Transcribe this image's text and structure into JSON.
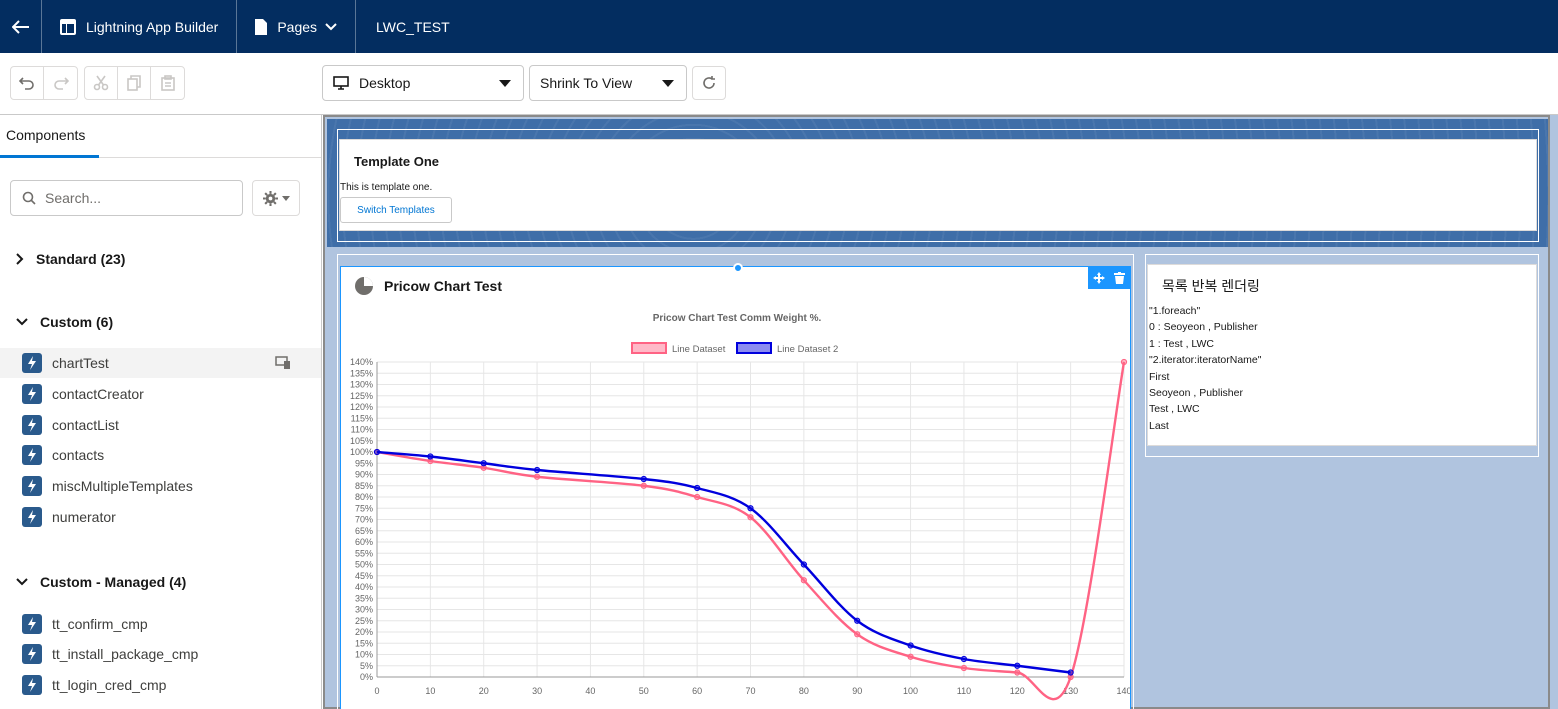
{
  "header": {
    "app_name": "Lightning App Builder",
    "pages_label": "Pages",
    "page_title": "LWC_TEST"
  },
  "toolbar": {
    "device_select": "Desktop",
    "view_select": "Shrink To View"
  },
  "left_panel": {
    "tab_label": "Components",
    "search_placeholder": "Search...",
    "sections": {
      "standard": "Standard (23)",
      "custom": "Custom (6)",
      "custom_managed": "Custom - Managed (4)"
    },
    "custom_items": [
      "chartTest",
      "contactCreator",
      "contactList",
      "contacts",
      "miscMultipleTemplates",
      "numerator"
    ],
    "managed_items": [
      "tt_confirm_cmp",
      "tt_install_package_cmp",
      "tt_login_cred_cmp"
    ]
  },
  "template_card": {
    "title": "Template One",
    "text": "This is template one.",
    "button": "Switch Templates"
  },
  "chart_card": {
    "title": "Pricow Chart Test"
  },
  "list_card": {
    "title": "목록 반복 렌더링",
    "lines": [
      "\"1.foreach\"",
      "0 : Seoyeon , Publisher",
      "1 : Test , LWC",
      "\"2.iterator:iteratorName\"",
      "First",
      "Seoyeon , Publisher",
      "Test , LWC",
      "Last"
    ]
  },
  "chart_data": {
    "type": "line",
    "title": "Pricow Chart Test Comm Weight %.",
    "x": [
      0,
      10,
      20,
      30,
      50,
      60,
      70,
      80,
      90,
      100,
      110,
      120,
      130,
      140
    ],
    "x_ticks": [
      "0",
      "10",
      "20",
      "30",
      "40",
      "50",
      "60",
      "70",
      "80",
      "90",
      "100",
      "110",
      "120",
      "130",
      "140"
    ],
    "y_ticks": [
      "0%",
      "5%",
      "10%",
      "15%",
      "20%",
      "25%",
      "30%",
      "35%",
      "40%",
      "45%",
      "50%",
      "55%",
      "60%",
      "65%",
      "70%",
      "75%",
      "80%",
      "85%",
      "90%",
      "95%",
      "100%",
      "105%",
      "110%",
      "115%",
      "120%",
      "125%",
      "130%",
      "135%",
      "140%"
    ],
    "ylim": [
      0,
      140
    ],
    "xlim": [
      0,
      140
    ],
    "grid": true,
    "legend_position": "top",
    "series": [
      {
        "name": "Line Dataset",
        "color": "#ff6384",
        "points": [
          [
            0,
            100
          ],
          [
            10,
            96
          ],
          [
            20,
            93
          ],
          [
            30,
            89
          ],
          [
            50,
            85
          ],
          [
            60,
            80
          ],
          [
            70,
            71
          ],
          [
            80,
            43
          ],
          [
            90,
            19
          ],
          [
            100,
            9
          ],
          [
            110,
            4
          ],
          [
            120,
            2
          ],
          [
            130,
            0
          ],
          [
            140,
            140
          ]
        ]
      },
      {
        "name": "Line Dataset 2",
        "color": "#0000dd",
        "points": [
          [
            0,
            100
          ],
          [
            10,
            98
          ],
          [
            20,
            95
          ],
          [
            30,
            92
          ],
          [
            50,
            88
          ],
          [
            60,
            84
          ],
          [
            70,
            75
          ],
          [
            80,
            50
          ],
          [
            90,
            25
          ],
          [
            100,
            14
          ],
          [
            110,
            8
          ],
          [
            120,
            5
          ],
          [
            130,
            2
          ]
        ]
      }
    ]
  }
}
